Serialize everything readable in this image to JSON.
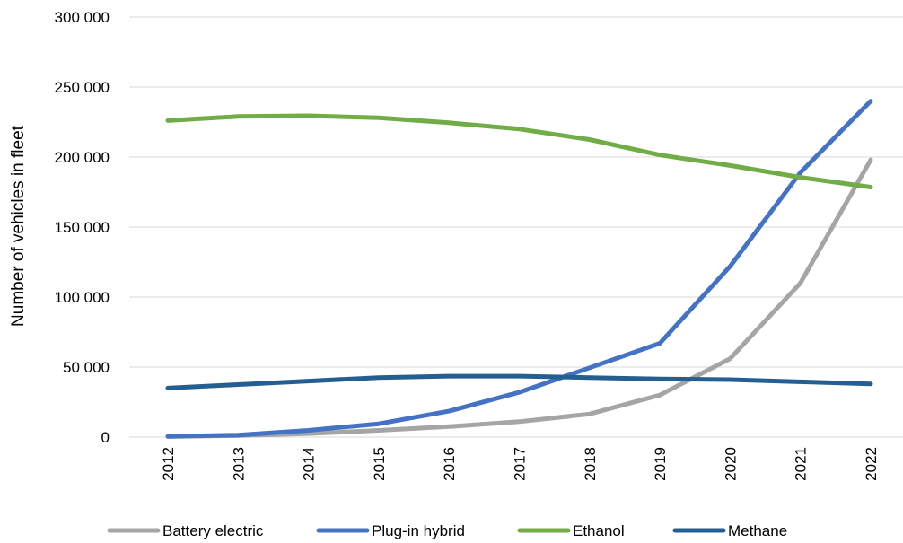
{
  "chart_data": {
    "type": "line",
    "title": "",
    "xlabel": "",
    "ylabel": "Number of vehicles in fleet",
    "categories": [
      "2012",
      "2013",
      "2014",
      "2015",
      "2016",
      "2017",
      "2018",
      "2019",
      "2020",
      "2021",
      "2022"
    ],
    "ylim": [
      0,
      300000
    ],
    "yticks": [
      0,
      50000,
      100000,
      150000,
      200000,
      250000,
      300000
    ],
    "ytick_labels": [
      "0",
      "50 000",
      "100 000",
      "150 000",
      "200 000",
      "250 000",
      "300 000"
    ],
    "grid": true,
    "legend_position": "bottom",
    "series": [
      {
        "name": "Battery electric",
        "color": "#a5a5a5",
        "values": [
          500,
          1000,
          2500,
          4800,
          7500,
          11000,
          16500,
          30000,
          56000,
          110000,
          198000
        ]
      },
      {
        "name": "Plug-in hybrid",
        "color": "#4472c4",
        "values": [
          500,
          1500,
          4800,
          9500,
          18500,
          32000,
          49500,
          67000,
          122000,
          189000,
          240000
        ]
      },
      {
        "name": "Ethanol",
        "color": "#70ad47",
        "values": [
          226000,
          229000,
          229500,
          228000,
          224500,
          220000,
          212500,
          201500,
          194000,
          185500,
          178500
        ]
      },
      {
        "name": "Methane",
        "color": "#255e91",
        "values": [
          35000,
          37500,
          40000,
          42500,
          43500,
          43500,
          42500,
          41500,
          41000,
          39500,
          38000
        ]
      }
    ]
  }
}
